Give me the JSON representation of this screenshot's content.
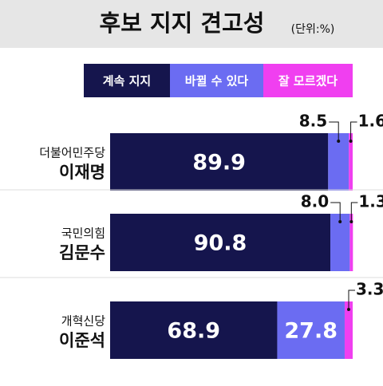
{
  "chart_data": {
    "type": "stacked-bar",
    "title": "후보 지지 견고성",
    "subtitle": "(단위:%)",
    "categories": [
      [
        "더불어민주당",
        "이재명"
      ],
      [
        "국민의힘",
        "김문수"
      ],
      [
        "개혁신당",
        "이준석"
      ]
    ],
    "series": [
      {
        "name": "계속 지지",
        "color": "#15154d",
        "values": [
          89.9,
          90.8,
          68.9
        ]
      },
      {
        "name": "바뀔 수 있다",
        "color": "#6b6cf2",
        "values": [
          8.5,
          8.0,
          27.8
        ],
        "value_labels": [
          "8.5",
          "8.0",
          "27.8"
        ]
      },
      {
        "name": "잘 모르겠다",
        "color": "#f03ff0",
        "values": [
          1.6,
          1.3,
          3.3
        ]
      }
    ],
    "xlim": [
      0,
      100
    ]
  }
}
